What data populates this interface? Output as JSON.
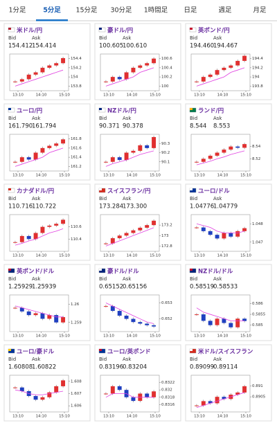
{
  "tabs": [
    "1分足",
    "5分足",
    "15分足",
    "30分足",
    "1時間足",
    "日足",
    "週足",
    "月足"
  ],
  "active_tab": 1,
  "labels": {
    "bid": "Bid",
    "ask": "Ask"
  },
  "cards": [
    {
      "name": "米ドル/円",
      "bid": "154.412",
      "ask": "154.414",
      "chart": {
        "type": "candlestick",
        "ylim": [
          153.7,
          154.5
        ],
        "yticks": [
          154.4,
          154.2,
          154,
          153.8
        ],
        "xticks": [
          "13:10",
          "14:10",
          "15:10"
        ],
        "values": [
          153.9,
          153.95,
          154.05,
          154.1,
          154.2,
          154.25,
          154.3,
          154.41
        ],
        "ma": [
          153.8,
          153.85,
          153.9,
          153.95,
          154.0,
          154.05,
          154.1,
          154.15
        ]
      }
    },
    {
      "name": "豪ドル/円",
      "bid": "100.605",
      "ask": "100.610",
      "chart": {
        "type": "candlestick",
        "ylim": [
          99.9,
          100.7
        ],
        "yticks": [
          100.6,
          100.4,
          100.2,
          100
        ],
        "xticks": [
          "13:10",
          "14:10",
          "15:10"
        ],
        "values": [
          100.1,
          100.2,
          100.15,
          100.3,
          100.4,
          100.45,
          100.5,
          100.6
        ],
        "ma": [
          100.0,
          100.05,
          100.1,
          100.15,
          100.2,
          100.3,
          100.35,
          100.4
        ]
      }
    },
    {
      "name": "英ポンド/円",
      "bid": "194.460",
      "ask": "194.467",
      "chart": {
        "type": "candlestick",
        "ylim": [
          193.7,
          194.5
        ],
        "yticks": [
          194.4,
          194.2,
          194,
          193.8
        ],
        "xticks": [
          "13:10",
          "14:10",
          "15:10"
        ],
        "values": [
          193.9,
          194.0,
          194.05,
          194.15,
          194.2,
          194.25,
          194.35,
          194.46
        ],
        "ma": [
          193.8,
          193.85,
          193.9,
          193.95,
          194.0,
          194.1,
          194.15,
          194.2
        ]
      }
    },
    {
      "name": "ユーロ/円",
      "bid": "161.790",
      "ask": "161.794",
      "chart": {
        "type": "candlestick",
        "ylim": [
          161.1,
          161.9
        ],
        "yticks": [
          161.8,
          161.6,
          161.4,
          161.2
        ],
        "xticks": [
          "13:10",
          "14:10",
          "15:10"
        ],
        "values": [
          161.3,
          161.4,
          161.35,
          161.5,
          161.6,
          161.65,
          161.7,
          161.79
        ],
        "ma": [
          161.2,
          161.25,
          161.3,
          161.35,
          161.4,
          161.5,
          161.55,
          161.6
        ]
      }
    },
    {
      "name": "NZドル/円",
      "bid": "90.371",
      "ask": "90.378",
      "chart": {
        "type": "candlestick",
        "ylim": [
          90.0,
          90.4
        ],
        "yticks": [
          90.3,
          90.2,
          90.1
        ],
        "xticks": [
          "13:10",
          "14:10",
          "15:10"
        ],
        "values": [
          90.1,
          90.15,
          90.12,
          90.2,
          90.22,
          90.28,
          90.25,
          90.37
        ],
        "ma": [
          90.05,
          90.08,
          90.1,
          90.12,
          90.15,
          90.18,
          90.2,
          90.22
        ]
      }
    },
    {
      "name": "ランド/円",
      "bid": "8.544",
      "ask": "8.553",
      "chart": {
        "type": "candlestick",
        "ylim": [
          8.5,
          8.56
        ],
        "yticks": [
          8.54,
          8.52
        ],
        "xticks": [
          "13:10",
          "14:10",
          "15:10"
        ],
        "values": [
          8.515,
          8.52,
          8.525,
          8.53,
          8.535,
          8.54,
          8.538,
          8.544
        ],
        "ma": [
          8.51,
          8.513,
          8.516,
          8.52,
          8.523,
          8.527,
          8.53,
          8.533
        ]
      }
    },
    {
      "name": "カナダドル/円",
      "bid": "110.716",
      "ask": "110.722",
      "chart": {
        "type": "candlestick",
        "ylim": [
          110.2,
          110.8
        ],
        "yticks": [
          110.6,
          110.4
        ],
        "xticks": [
          "13:10",
          "14:10",
          "15:10"
        ],
        "values": [
          110.35,
          110.45,
          110.4,
          110.5,
          110.6,
          110.62,
          110.65,
          110.716
        ],
        "ma": [
          110.3,
          110.33,
          110.37,
          110.4,
          110.45,
          110.5,
          110.53,
          110.57
        ]
      }
    },
    {
      "name": "スイスフラン/円",
      "bid": "173.284",
      "ask": "173.300",
      "chart": {
        "type": "candlestick",
        "ylim": [
          172.7,
          173.4
        ],
        "yticks": [
          173.2,
          173,
          172.8
        ],
        "xticks": [
          "13:10",
          "14:10",
          "15:10"
        ],
        "values": [
          172.85,
          172.95,
          173.0,
          173.05,
          173.1,
          173.15,
          173.2,
          173.284
        ],
        "ma": [
          172.8,
          172.85,
          172.9,
          172.95,
          173.0,
          173.05,
          173.1,
          173.15
        ]
      }
    },
    {
      "name": "ユーロ/ドル",
      "bid": "1.04776",
      "ask": "1.04779",
      "chart": {
        "type": "candlestick",
        "ylim": [
          1.0465,
          1.0485
        ],
        "yticks": [
          1.048,
          1.047
        ],
        "xticks": [
          "13:10",
          "14:10",
          "15:10"
        ],
        "values": [
          1.0478,
          1.0476,
          1.0474,
          1.0472,
          1.0475,
          1.0473,
          1.0476,
          1.04776
        ],
        "ma": [
          1.048,
          1.0479,
          1.0478,
          1.0476,
          1.0475,
          1.0475,
          1.0475,
          1.0476
        ]
      }
    },
    {
      "name": "英ポンド/ドル",
      "bid": "1.25929",
      "ask": "1.25939",
      "chart": {
        "type": "candlestick",
        "ylim": [
          1.2585,
          1.2605
        ],
        "yticks": [
          1.26,
          1.259
        ],
        "xticks": [
          "13:10",
          "14:10",
          "15:10"
        ],
        "values": [
          1.2598,
          1.2596,
          1.2594,
          1.2595,
          1.2592,
          1.2594,
          1.259,
          1.25929
        ],
        "ma": [
          1.2599,
          1.2598,
          1.2597,
          1.2596,
          1.2595,
          1.2594,
          1.2593,
          1.2593
        ]
      }
    },
    {
      "name": "豪ドル/ドル",
      "bid": "0.65152",
      "ask": "0.65156",
      "chart": {
        "type": "candlestick",
        "ylim": [
          0.6512,
          0.6535
        ],
        "yticks": [
          0.653,
          0.652
        ],
        "xticks": [
          "13:10",
          "14:10",
          "15:10"
        ],
        "values": [
          0.6528,
          0.6525,
          0.6522,
          0.652,
          0.6518,
          0.6517,
          0.6516,
          0.65152
        ],
        "ma": [
          0.653,
          0.6528,
          0.6526,
          0.6524,
          0.6522,
          0.652,
          0.6518,
          0.6517
        ]
      }
    },
    {
      "name": "NZドル/ドル",
      "bid": "0.58519",
      "ask": "0.58533",
      "chart": {
        "type": "candlestick",
        "ylim": [
          0.5847,
          0.5864
        ],
        "yticks": [
          0.586,
          0.5855,
          0.585
        ],
        "xticks": [
          "13:10",
          "14:10",
          "15:10"
        ],
        "values": [
          0.5855,
          0.5852,
          0.585,
          0.5853,
          0.5851,
          0.5849,
          0.5853,
          0.58519
        ],
        "ma": [
          0.5858,
          0.5856,
          0.5855,
          0.5854,
          0.5853,
          0.5852,
          0.5852,
          0.5852
        ]
      }
    },
    {
      "name": "ユーロ/豪ドル",
      "bid": "1.60808",
      "ask": "1.60822",
      "chart": {
        "type": "candlestick",
        "ylim": [
          1.6055,
          1.6085
        ],
        "yticks": [
          1.608,
          1.607,
          1.606
        ],
        "xticks": [
          "13:10",
          "14:10",
          "15:10"
        ],
        "values": [
          1.6075,
          1.6072,
          1.6068,
          1.6065,
          1.6067,
          1.6071,
          1.6076,
          1.60808
        ],
        "ma": [
          1.6073,
          1.6072,
          1.607,
          1.6069,
          1.6069,
          1.607,
          1.6071,
          1.6072
        ]
      }
    },
    {
      "name": "ユーロ/英ポンド",
      "bid": "0.83196",
      "ask": "0.83204",
      "chart": {
        "type": "candlestick",
        "ylim": [
          0.8314,
          0.8324
        ],
        "yticks": [
          0.8322,
          0.832,
          0.8318,
          0.8316
        ],
        "xticks": [
          "13:10",
          "14:10",
          "15:10"
        ],
        "values": [
          0.8319,
          0.8321,
          0.832,
          0.8318,
          0.8317,
          0.8319,
          0.8318,
          0.83196
        ],
        "ma": [
          0.8318,
          0.8319,
          0.8319,
          0.8319,
          0.8318,
          0.8318,
          0.8318,
          0.8318
        ]
      }
    },
    {
      "name": "米ドル/スイスフラン",
      "bid": "0.89099",
      "ask": "0.89114",
      "chart": {
        "type": "candlestick",
        "ylim": [
          0.8898,
          0.8915
        ],
        "yticks": [
          0.891,
          0.8905
        ],
        "xticks": [
          "13:10",
          "14:10",
          "15:10"
        ],
        "values": [
          0.8901,
          0.8903,
          0.8902,
          0.8905,
          0.8904,
          0.8906,
          0.8907,
          0.89099
        ],
        "ma": [
          0.89,
          0.8901,
          0.8902,
          0.8903,
          0.8904,
          0.8905,
          0.8906,
          0.8907
        ]
      }
    }
  ]
}
